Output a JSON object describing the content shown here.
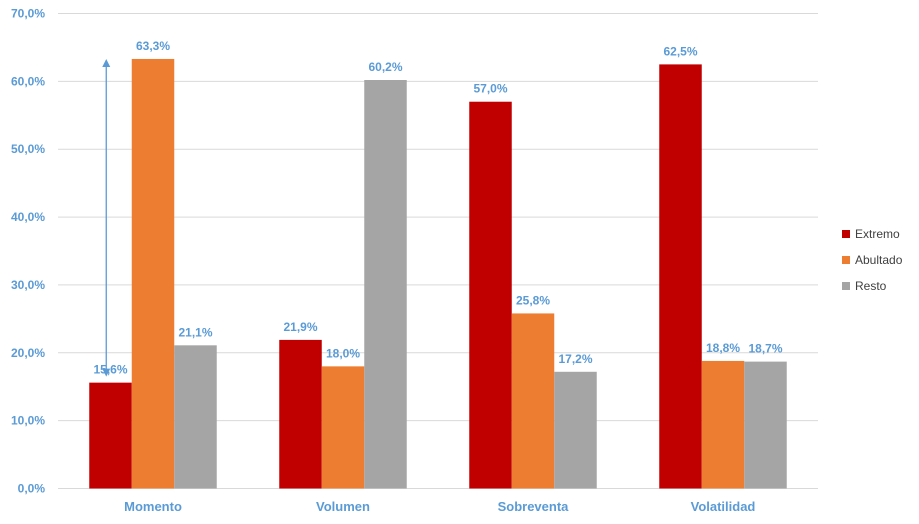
{
  "chart_data": {
    "type": "bar",
    "categories": [
      "Momento",
      "Volumen",
      "Sobreventa",
      "Volatilidad"
    ],
    "series": [
      {
        "name": "Extremo",
        "color": "#c00000",
        "values": [
          15.6,
          21.9,
          57.0,
          62.5
        ],
        "labels": [
          "15,6%",
          "21,9%",
          "57,0%",
          "62,5%"
        ]
      },
      {
        "name": "Abultado",
        "color": "#ed7d31",
        "values": [
          63.3,
          18.0,
          25.8,
          18.8
        ],
        "labels": [
          "63,3%",
          "18,0%",
          "25,8%",
          "18,8%"
        ]
      },
      {
        "name": "Resto",
        "color": "#a5a5a5",
        "values": [
          21.1,
          60.2,
          17.2,
          18.7
        ],
        "labels": [
          "21,1%",
          "60,2%",
          "17,2%",
          "18,7%"
        ]
      }
    ],
    "ylim": [
      0,
      70
    ],
    "yticks": [
      0,
      10,
      20,
      30,
      40,
      50,
      60,
      70
    ],
    "ytick_labels": [
      "0,0%",
      "10,0%",
      "20,0%",
      "30,0%",
      "40,0%",
      "50,0%",
      "60,0%",
      "70,0%"
    ],
    "grid": true,
    "legend": "right",
    "annotation": {
      "type": "double-arrow",
      "category": "Momento",
      "from_value": 15.6,
      "to_value": 63.3,
      "color": "#5b9bd5"
    }
  }
}
